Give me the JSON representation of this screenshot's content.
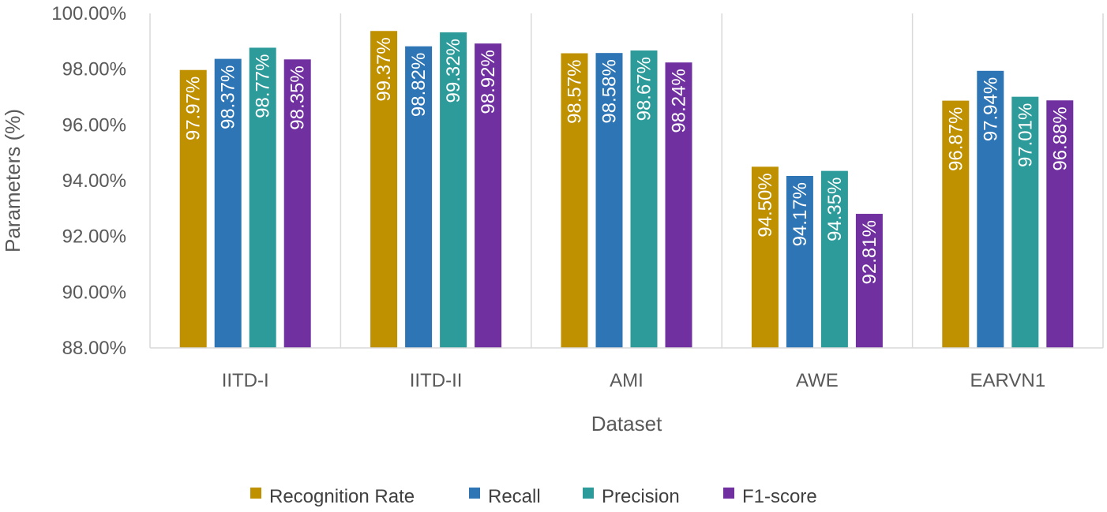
{
  "chart_data": {
    "type": "bar",
    "title": "",
    "xlabel": "Dataset",
    "ylabel": "Parameters (%)",
    "ylim": [
      88,
      100
    ],
    "ytick_step": 2,
    "ytick_labels": [
      "88.00%",
      "90.00%",
      "92.00%",
      "94.00%",
      "96.00%",
      "98.00%",
      "100.00%"
    ],
    "categories": [
      "IITD-I",
      "IITD-II",
      "AMI",
      "AWE",
      "EARVN1"
    ],
    "grid": "vertical separators between categories",
    "legend_position": "bottom",
    "series": [
      {
        "name": "Recognition Rate",
        "color": "#BF9000",
        "values": [
          97.97,
          99.37,
          98.57,
          94.5,
          96.87
        ],
        "labels": [
          "97.97%",
          "99.37%",
          "98.57%",
          "94.50%",
          "96.87%"
        ]
      },
      {
        "name": "Recall",
        "color": "#2E75B6",
        "values": [
          98.37,
          98.82,
          98.58,
          94.17,
          97.94
        ],
        "labels": [
          "98.37%",
          "98.82%",
          "98.58%",
          "94.17%",
          "97.94%"
        ]
      },
      {
        "name": "Precision",
        "color": "#2E9B9B",
        "values": [
          98.77,
          99.32,
          98.67,
          94.35,
          97.01
        ],
        "labels": [
          "98.77%",
          "99.32%",
          "98.67%",
          "94.35%",
          "97.01%"
        ]
      },
      {
        "name": "F1-score",
        "color": "#7030A0",
        "values": [
          98.35,
          98.92,
          98.24,
          92.81,
          96.88
        ],
        "labels": [
          "98.35%",
          "98.92%",
          "98.24%",
          "92.81%",
          "96.88%"
        ]
      }
    ]
  }
}
